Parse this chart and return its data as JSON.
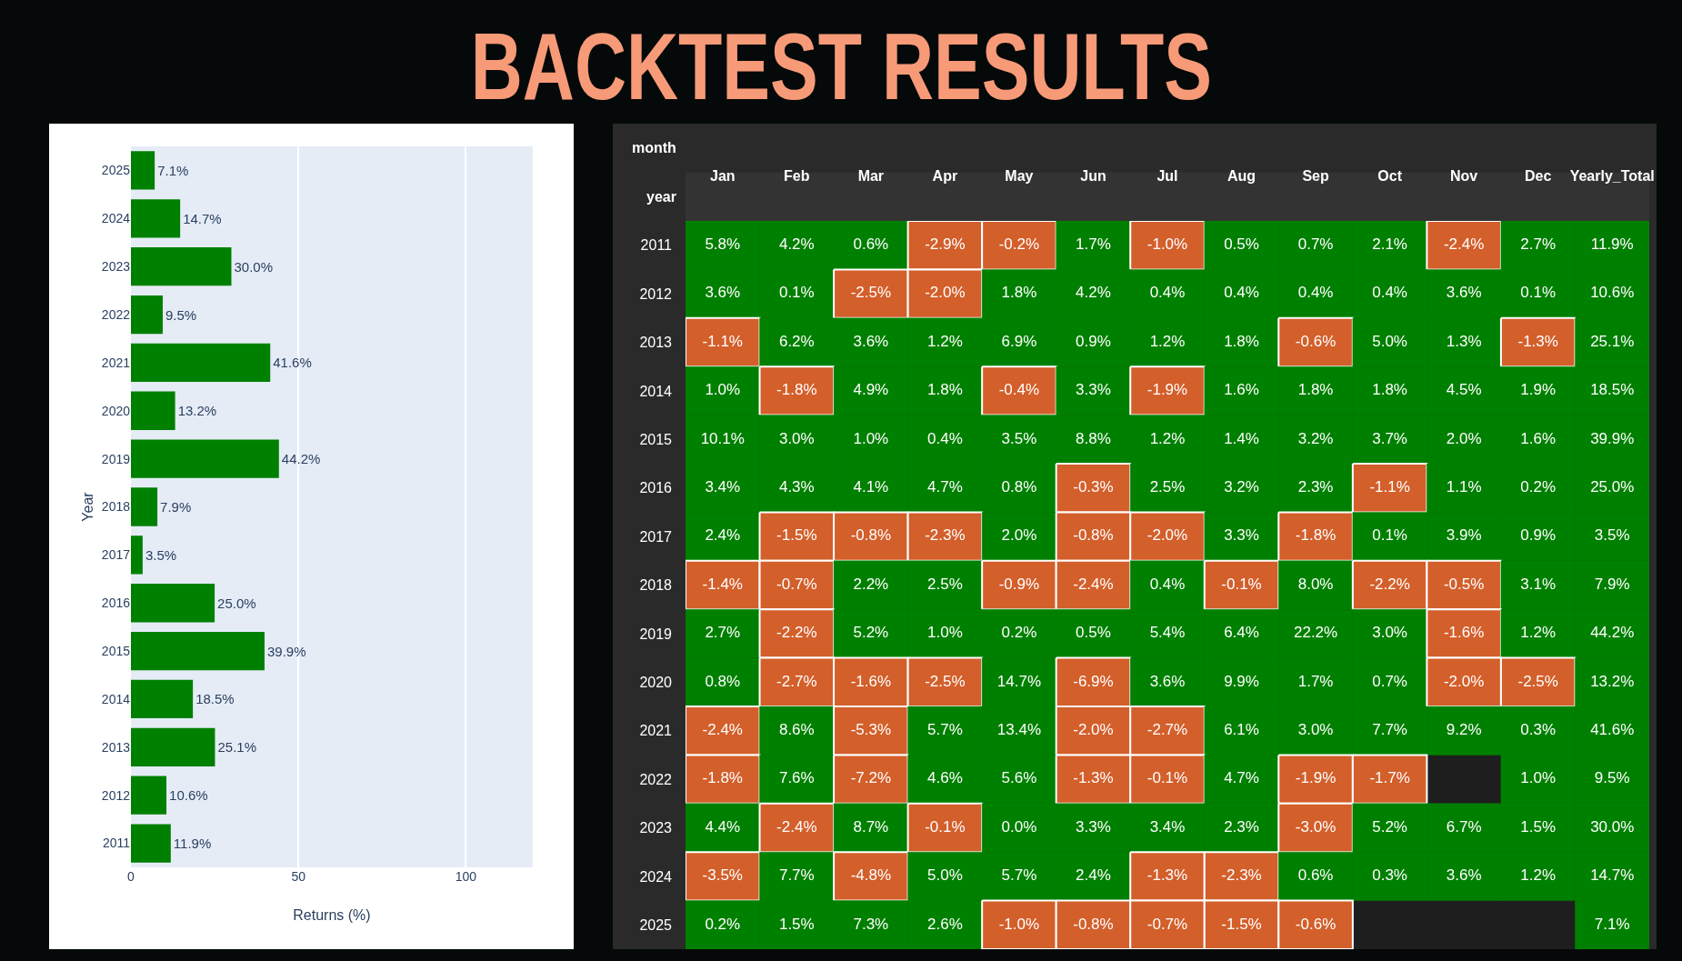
{
  "chart_data": [
    {
      "type": "bar",
      "title": "BACKTEST RESULTS",
      "orientation": "horizontal",
      "categories": [
        "2025",
        "2024",
        "2023",
        "2022",
        "2021",
        "2020",
        "2019",
        "2018",
        "2017",
        "2016",
        "2015",
        "2014",
        "2013",
        "2012",
        "2011"
      ],
      "values": [
        7.1,
        14.7,
        30.0,
        9.5,
        41.6,
        13.2,
        44.2,
        7.9,
        3.5,
        25.0,
        39.9,
        18.5,
        25.1,
        10.6,
        11.9
      ],
      "value_labels": [
        "7.1%",
        "14.7%",
        "30.0%",
        "9.5%",
        "41.6%",
        "13.2%",
        "44.2%",
        "7.9%",
        "3.5%",
        "25.0%",
        "39.9%",
        "18.5%",
        "25.1%",
        "10.6%",
        "11.9%"
      ],
      "color": "#008000",
      "xlim": [
        0,
        120
      ],
      "xticks": [
        0,
        50,
        100
      ],
      "xlabel": "Returns (%)",
      "ylabel": "Year",
      "grid": "x"
    },
    {
      "type": "heatmap",
      "xlabel": "month",
      "ylabel": "year",
      "categories": [
        "Jan",
        "Feb",
        "Mar",
        "Apr",
        "May",
        "Jun",
        "Jul",
        "Aug",
        "Sep",
        "Oct",
        "Nov",
        "Dec",
        "Yearly_Total"
      ],
      "y_categories": [
        "2011",
        "2012",
        "2013",
        "2014",
        "2015",
        "2016",
        "2017",
        "2018",
        "2019",
        "2020",
        "2021",
        "2022",
        "2023",
        "2024",
        "2025"
      ],
      "colors": [
        "#d35f2b",
        "#008000"
      ],
      "cells": [
        [
          5.8,
          4.2,
          0.6,
          -2.9,
          -0.2,
          1.7,
          -1.0,
          0.5,
          0.7,
          2.1,
          -2.4,
          2.7,
          11.9
        ],
        [
          3.6,
          0.1,
          -2.5,
          -2.0,
          1.8,
          4.2,
          0.4,
          0.4,
          0.4,
          0.4,
          3.6,
          0.1,
          10.6
        ],
        [
          -1.1,
          6.2,
          3.6,
          1.2,
          6.9,
          0.9,
          1.2,
          1.8,
          -0.6,
          5.0,
          1.3,
          -1.3,
          25.1
        ],
        [
          1.0,
          -1.8,
          4.9,
          1.8,
          -0.4,
          3.3,
          -1.9,
          1.6,
          1.8,
          1.8,
          4.5,
          1.9,
          18.5
        ],
        [
          10.1,
          3.0,
          1.0,
          0.4,
          3.5,
          8.8,
          1.2,
          1.4,
          3.2,
          3.7,
          2.0,
          1.6,
          39.9
        ],
        [
          3.4,
          4.3,
          4.1,
          4.7,
          0.8,
          -0.3,
          2.5,
          3.2,
          2.3,
          -1.1,
          1.1,
          0.2,
          25.0
        ],
        [
          2.4,
          -1.5,
          -0.8,
          -2.3,
          2.0,
          -0.8,
          -2.0,
          3.3,
          -1.8,
          0.1,
          3.9,
          0.9,
          3.5
        ],
        [
          -1.4,
          -0.7,
          2.2,
          2.5,
          -0.9,
          -2.4,
          0.4,
          -0.1,
          8.0,
          -2.2,
          -0.5,
          3.1,
          7.9
        ],
        [
          2.7,
          -2.2,
          5.2,
          1.0,
          0.2,
          0.5,
          5.4,
          6.4,
          22.2,
          3.0,
          -1.6,
          1.2,
          44.2
        ],
        [
          0.8,
          -2.7,
          -1.6,
          -2.5,
          14.7,
          -6.9,
          3.6,
          9.9,
          1.7,
          0.7,
          -2.0,
          -2.5,
          13.2
        ],
        [
          -2.4,
          8.6,
          -5.3,
          5.7,
          13.4,
          -2.0,
          -2.7,
          6.1,
          3.0,
          7.7,
          9.2,
          0.3,
          41.6
        ],
        [
          -1.8,
          7.6,
          -7.2,
          4.6,
          5.6,
          -1.3,
          -0.1,
          4.7,
          -1.9,
          -1.7,
          null,
          1.0,
          9.5
        ],
        [
          4.4,
          -2.4,
          8.7,
          -0.1,
          0.0,
          3.3,
          3.4,
          2.3,
          -3.0,
          5.2,
          6.7,
          1.5,
          30.0
        ],
        [
          -3.5,
          7.7,
          -4.8,
          5.0,
          5.7,
          2.4,
          -1.3,
          -2.3,
          0.6,
          0.3,
          3.6,
          1.2,
          14.7
        ],
        [
          0.2,
          1.5,
          7.3,
          2.6,
          -1.0,
          -0.8,
          -0.7,
          -1.5,
          -0.6,
          null,
          null,
          null,
          7.1
        ]
      ],
      "cell_labels": [
        [
          "5.8%",
          "4.2%",
          "0.6%",
          "-2.9%",
          "-0.2%",
          "1.7%",
          "-1.0%",
          "0.5%",
          "0.7%",
          "2.1%",
          "-2.4%",
          "2.7%",
          "11.9%"
        ],
        [
          "3.6%",
          "0.1%",
          "-2.5%",
          "-2.0%",
          "1.8%",
          "4.2%",
          "0.4%",
          "0.4%",
          "0.4%",
          "0.4%",
          "3.6%",
          "0.1%",
          "10.6%"
        ],
        [
          "-1.1%",
          "6.2%",
          "3.6%",
          "1.2%",
          "6.9%",
          "0.9%",
          "1.2%",
          "1.8%",
          "-0.6%",
          "5.0%",
          "1.3%",
          "-1.3%",
          "25.1%"
        ],
        [
          "1.0%",
          "-1.8%",
          "4.9%",
          "1.8%",
          "-0.4%",
          "3.3%",
          "-1.9%",
          "1.6%",
          "1.8%",
          "1.8%",
          "4.5%",
          "1.9%",
          "18.5%"
        ],
        [
          "10.1%",
          "3.0%",
          "1.0%",
          "0.4%",
          "3.5%",
          "8.8%",
          "1.2%",
          "1.4%",
          "3.2%",
          "3.7%",
          "2.0%",
          "1.6%",
          "39.9%"
        ],
        [
          "3.4%",
          "4.3%",
          "4.1%",
          "4.7%",
          "0.8%",
          "-0.3%",
          "2.5%",
          "3.2%",
          "2.3%",
          "-1.1%",
          "1.1%",
          "0.2%",
          "25.0%"
        ],
        [
          "2.4%",
          "-1.5%",
          "-0.8%",
          "-2.3%",
          "2.0%",
          "-0.8%",
          "-2.0%",
          "3.3%",
          "-1.8%",
          "0.1%",
          "3.9%",
          "0.9%",
          "3.5%"
        ],
        [
          "-1.4%",
          "-0.7%",
          "2.2%",
          "2.5%",
          "-0.9%",
          "-2.4%",
          "0.4%",
          "-0.1%",
          "8.0%",
          "-2.2%",
          "-0.5%",
          "3.1%",
          "7.9%"
        ],
        [
          "2.7%",
          "-2.2%",
          "5.2%",
          "1.0%",
          "0.2%",
          "0.5%",
          "5.4%",
          "6.4%",
          "22.2%",
          "3.0%",
          "-1.6%",
          "1.2%",
          "44.2%"
        ],
        [
          "0.8%",
          "-2.7%",
          "-1.6%",
          "-2.5%",
          "14.7%",
          "-6.9%",
          "3.6%",
          "9.9%",
          "1.7%",
          "0.7%",
          "-2.0%",
          "-2.5%",
          "13.2%"
        ],
        [
          "-2.4%",
          "8.6%",
          "-5.3%",
          "5.7%",
          "13.4%",
          "-2.0%",
          "-2.7%",
          "6.1%",
          "3.0%",
          "7.7%",
          "9.2%",
          "0.3%",
          "41.6%"
        ],
        [
          "-1.8%",
          "7.6%",
          "-7.2%",
          "4.6%",
          "5.6%",
          "-1.3%",
          "-0.1%",
          "4.7%",
          "-1.9%",
          "-1.7%",
          null,
          "1.0%",
          "9.5%"
        ],
        [
          "4.4%",
          "-2.4%",
          "8.7%",
          "-0.1%",
          "0.0%",
          "3.3%",
          "3.4%",
          "2.3%",
          "-3.0%",
          "5.2%",
          "6.7%",
          "1.5%",
          "30.0%"
        ],
        [
          "-3.5%",
          "7.7%",
          "-4.8%",
          "5.0%",
          "5.7%",
          "2.4%",
          "-1.3%",
          "-2.3%",
          "0.6%",
          "0.3%",
          "3.6%",
          "1.2%",
          "14.7%"
        ],
        [
          "0.2%",
          "1.5%",
          "7.3%",
          "2.6%",
          "-1.0%",
          "-0.8%",
          "-0.7%",
          "-1.5%",
          "-0.6%",
          null,
          null,
          null,
          "7.1%"
        ]
      ]
    }
  ]
}
